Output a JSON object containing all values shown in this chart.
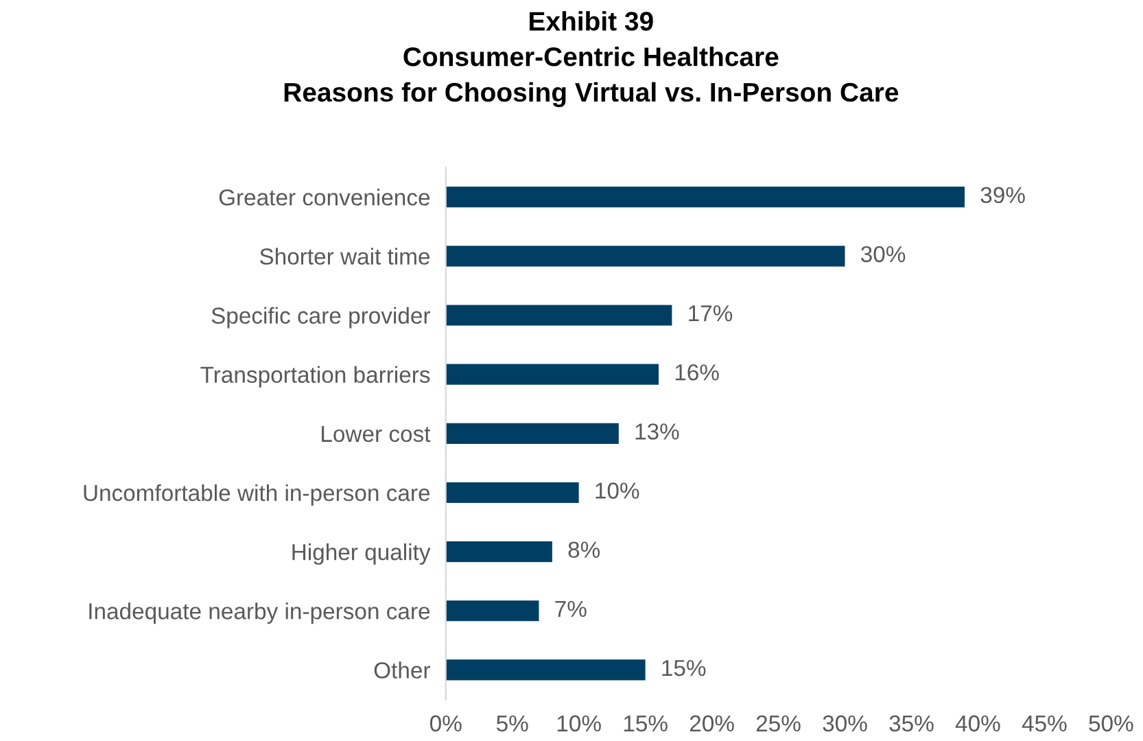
{
  "chart_data": {
    "type": "bar",
    "orientation": "horizontal",
    "title": "Exhibit 39\nConsumer-Centric Healthcare\nReasons for Choosing Virtual vs. In-Person Care",
    "categories": [
      "Greater convenience",
      "Shorter wait time",
      "Specific care provider",
      "Transportation barriers",
      "Lower cost",
      "Uncomfortable with in-person care",
      "Higher quality",
      "Inadequate nearby in-person care",
      "Other"
    ],
    "values": [
      39,
      30,
      17,
      16,
      13,
      10,
      8,
      7,
      15
    ],
    "value_labels": [
      "39%",
      "30%",
      "17%",
      "16%",
      "13%",
      "10%",
      "8%",
      "7%",
      "15%"
    ],
    "color": "#003f63",
    "xlim": [
      0,
      50
    ],
    "xticks": [
      {
        "value": 0,
        "label": "0%"
      },
      {
        "value": 5,
        "label": "5%"
      },
      {
        "value": 10,
        "label": "10%"
      },
      {
        "value": 15,
        "label": "15%"
      },
      {
        "value": 20,
        "label": "20%"
      },
      {
        "value": 25,
        "label": "25%"
      },
      {
        "value": 30,
        "label": "30%"
      },
      {
        "value": 35,
        "label": "35%"
      },
      {
        "value": 40,
        "label": "40%"
      },
      {
        "value": 45,
        "label": "45%"
      },
      {
        "value": 50,
        "label": "50%"
      }
    ],
    "grid": false
  }
}
